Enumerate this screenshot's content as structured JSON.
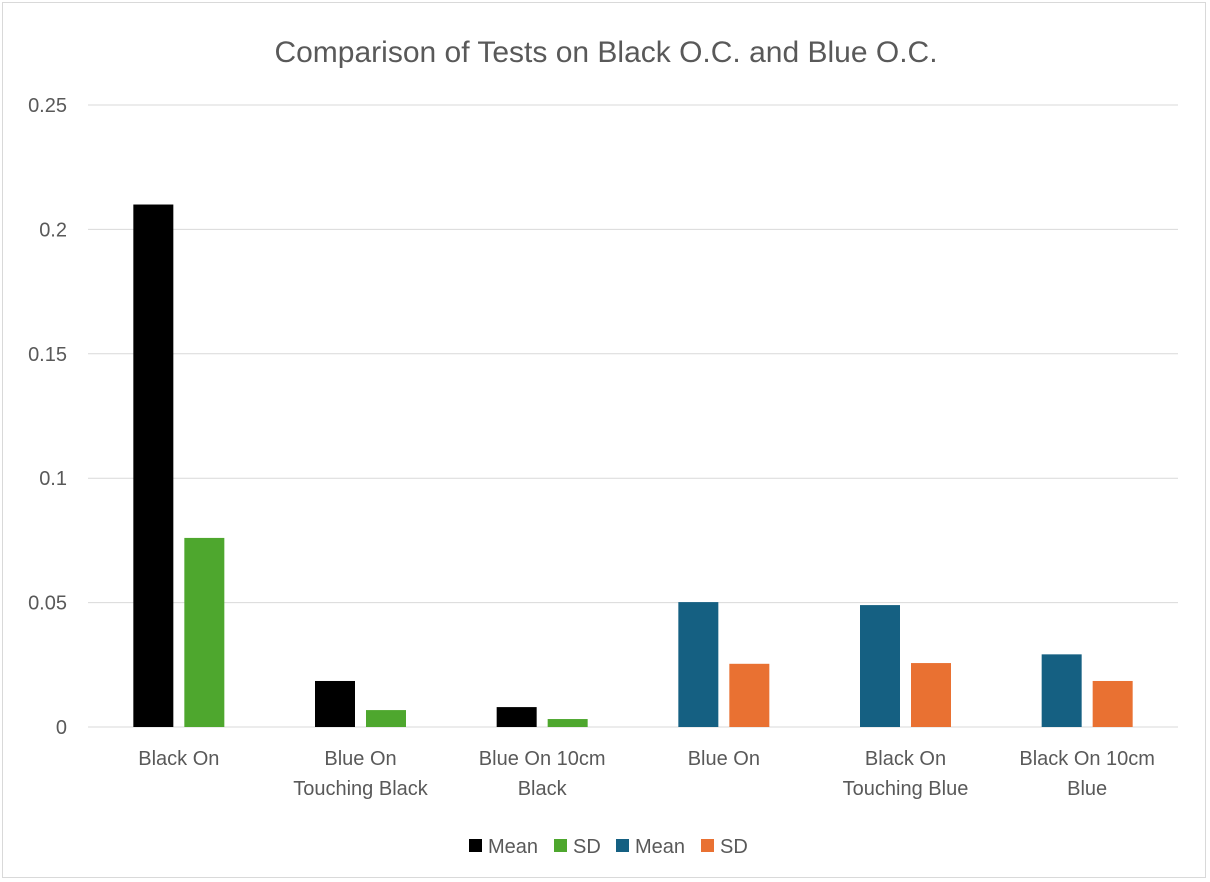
{
  "chart_data": {
    "type": "bar",
    "title": "Comparison of Tests on Black O.C. and Blue O.C.",
    "xlabel": "",
    "ylabel": "",
    "ylim": [
      0,
      0.25
    ],
    "yticks": [
      "0",
      "0.05",
      "0.1",
      "0.15",
      "0.2",
      "0.25"
    ],
    "grid": true,
    "legend_position": "bottom",
    "categories": [
      [
        "Black On"
      ],
      [
        "Blue On",
        "Touching Black"
      ],
      [
        "Blue On 10cm",
        "Black"
      ],
      [
        "Blue On"
      ],
      [
        "Black On",
        "Touching Blue"
      ],
      [
        "Black On 10cm",
        "Blue"
      ]
    ],
    "series": [
      {
        "name": "Mean",
        "color": "#000000",
        "values": [
          0.21,
          0.0185,
          0.008,
          null,
          null,
          null
        ]
      },
      {
        "name": "SD",
        "color": "#4ea72e",
        "values": [
          0.076,
          0.0068,
          0.0032,
          null,
          null,
          null
        ]
      },
      {
        "name": "Mean",
        "color": "#156082",
        "values": [
          null,
          null,
          null,
          0.0502,
          0.049,
          0.0292
        ]
      },
      {
        "name": "SD",
        "color": "#e97132",
        "values": [
          null,
          null,
          null,
          0.0254,
          0.0257,
          0.0185
        ]
      }
    ]
  }
}
